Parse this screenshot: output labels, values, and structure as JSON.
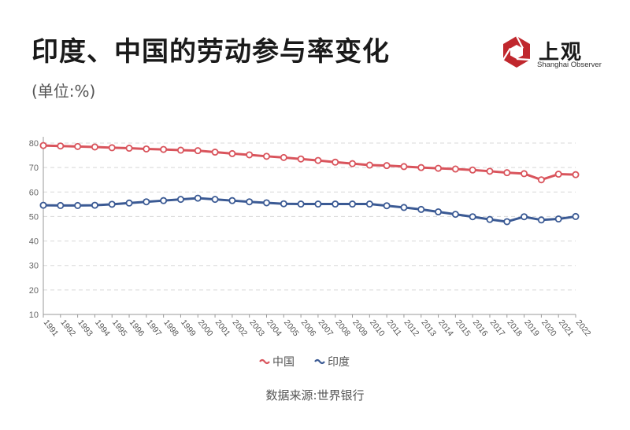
{
  "title": "印度、中国的劳动参与率变化",
  "unit": "(单位:%)",
  "logo": {
    "name": "上观",
    "subtitle": "Shanghai Observer"
  },
  "source": "数据来源:世界银行",
  "colors": {
    "china": "#d9545c",
    "india": "#3b5a94",
    "grid": "#d8d8d8",
    "axis": "#999999"
  },
  "chart_data": {
    "type": "line",
    "x": [
      "1991",
      "1992",
      "1993",
      "1994",
      "1995",
      "1996",
      "1997",
      "1998",
      "1999",
      "2000",
      "2001",
      "2002",
      "2003",
      "2004",
      "2005",
      "2006",
      "2007",
      "2008",
      "2009",
      "2010",
      "2011",
      "2012",
      "2013",
      "2014",
      "2015",
      "2016",
      "2017",
      "2018",
      "2019",
      "2020",
      "2021",
      "2022"
    ],
    "ylim": [
      10,
      80
    ],
    "yticks": [
      10,
      20,
      30,
      40,
      50,
      60,
      70,
      80
    ],
    "grid": true,
    "legend": "bottom-center",
    "series": [
      {
        "name": "中国",
        "color": "#d9545c",
        "values": [
          79.0,
          78.8,
          78.6,
          78.4,
          78.1,
          77.9,
          77.6,
          77.4,
          77.1,
          76.9,
          76.3,
          75.7,
          75.2,
          74.6,
          74.1,
          73.5,
          72.9,
          72.2,
          71.6,
          71.0,
          70.8,
          70.4,
          70.0,
          69.7,
          69.4,
          69.0,
          68.5,
          67.9,
          67.5,
          65.0,
          67.3,
          67.1
        ]
      },
      {
        "name": "印度",
        "color": "#3b5a94",
        "values": [
          54.6,
          54.5,
          54.5,
          54.6,
          55.0,
          55.5,
          56.0,
          56.5,
          57.0,
          57.5,
          57.0,
          56.5,
          56.0,
          55.6,
          55.2,
          55.1,
          55.1,
          55.1,
          55.1,
          55.1,
          54.4,
          53.7,
          52.9,
          51.9,
          50.9,
          49.9,
          48.8,
          47.9,
          49.9,
          48.6,
          49.0,
          50.0
        ]
      }
    ]
  }
}
